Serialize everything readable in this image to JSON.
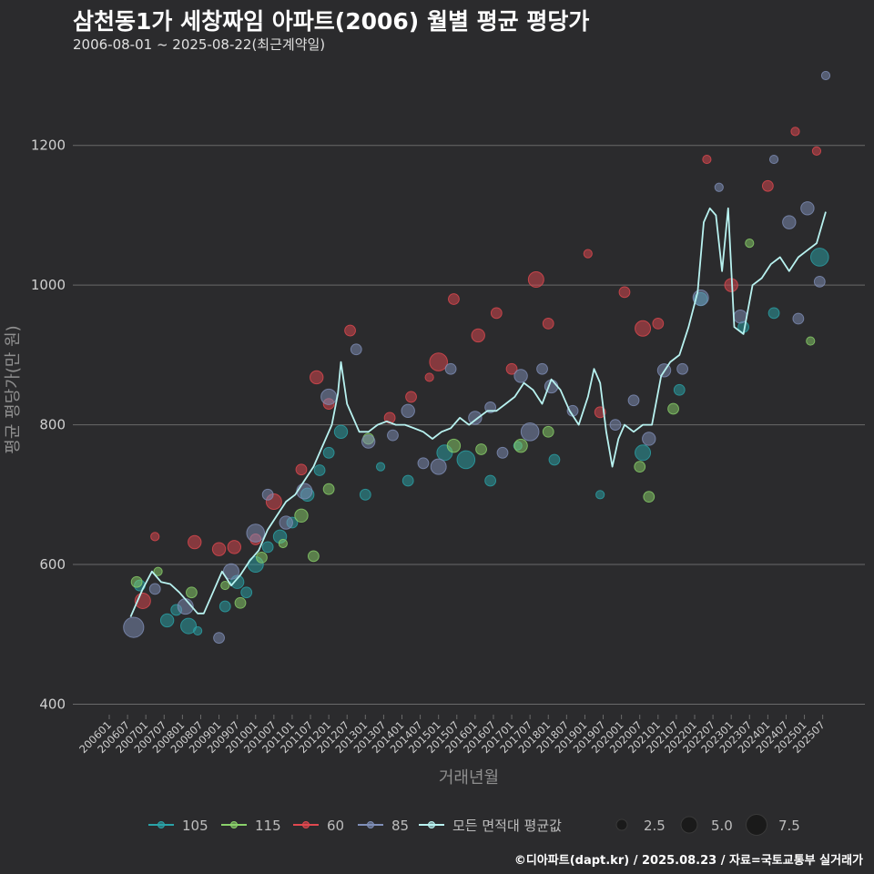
{
  "title": "삼천동1가 세창짜임 아파트(2006) 월별 평균 평당가",
  "subtitle": "2006-08-01 ~ 2025-08-22(최근계약일)",
  "caption": "©디아파트(dapt.kr) / 2025.08.23 / 자료=국토교통부 실거래가",
  "colors": {
    "background": "#2b2b2d",
    "grid": "#6a6a6a",
    "text": "#cfcfcf",
    "series_105": "#2aa3a8",
    "series_115": "#8ad16a",
    "series_60": "#e0484f",
    "series_85": "#7f8fb8",
    "avg_line": "#b8f2f0"
  },
  "chart_data": {
    "type": "line",
    "xlabel": "거래년월",
    "ylabel": "평균 평당가(만 원)",
    "ylim": [
      385,
      1330
    ],
    "yticks": [
      400,
      600,
      800,
      1000,
      1200
    ],
    "xticks": [
      "200601",
      "200607",
      "200701",
      "200707",
      "200801",
      "200807",
      "200901",
      "200907",
      "201001",
      "201007",
      "201101",
      "201107",
      "201201",
      "201207",
      "201301",
      "201307",
      "201401",
      "201407",
      "201501",
      "201507",
      "201601",
      "201607",
      "201701",
      "201707",
      "201801",
      "201807",
      "201901",
      "201907",
      "202001",
      "202007",
      "202101",
      "202107",
      "202201",
      "202207",
      "202301",
      "202307",
      "202401",
      "202407",
      "202501",
      "202507"
    ],
    "grid": true,
    "legend_position": "bottom",
    "legend": {
      "series": [
        "105",
        "115",
        "60",
        "85",
        "모든 면적대 평균값"
      ],
      "sizes": [
        "2.5",
        "5.0",
        "7.5"
      ]
    },
    "average_line": {
      "name": "모든 면적대 평균값",
      "x": [
        "2006-08",
        "2006-12",
        "2007-03",
        "2007-06",
        "2007-09",
        "2007-12",
        "2008-03",
        "2008-06",
        "2008-08",
        "2008-11",
        "2009-02",
        "2009-05",
        "2009-08",
        "2009-11",
        "2010-02",
        "2010-05",
        "2010-08",
        "2010-11",
        "2011-02",
        "2011-05",
        "2011-08",
        "2011-11",
        "2012-02",
        "2012-04",
        "2012-05",
        "2012-07",
        "2012-09",
        "2012-11",
        "2013-02",
        "2013-05",
        "2013-08",
        "2013-11",
        "2014-02",
        "2014-05",
        "2014-08",
        "2014-11",
        "2015-02",
        "2015-05",
        "2015-08",
        "2015-11",
        "2016-02",
        "2016-05",
        "2016-08",
        "2016-11",
        "2017-02",
        "2017-05",
        "2017-08",
        "2017-11",
        "2018-02",
        "2018-05",
        "2018-08",
        "2018-11",
        "2019-02",
        "2019-04",
        "2019-06",
        "2019-08",
        "2019-10",
        "2019-12",
        "2020-02",
        "2020-05",
        "2020-08",
        "2020-11",
        "2021-02",
        "2021-05",
        "2021-08",
        "2021-11",
        "2022-02",
        "2022-04",
        "2022-06",
        "2022-08",
        "2022-10",
        "2022-12",
        "2023-02",
        "2023-05",
        "2023-08",
        "2023-11",
        "2024-02",
        "2024-05",
        "2024-08",
        "2024-11",
        "2025-02",
        "2025-05",
        "2025-08"
      ],
      "y": [
        525,
        565,
        590,
        575,
        572,
        560,
        545,
        530,
        530,
        560,
        590,
        570,
        585,
        605,
        620,
        650,
        670,
        690,
        700,
        720,
        740,
        770,
        800,
        845,
        890,
        830,
        810,
        790,
        790,
        800,
        805,
        800,
        800,
        795,
        790,
        780,
        790,
        795,
        810,
        800,
        810,
        820,
        820,
        830,
        840,
        860,
        850,
        830,
        865,
        850,
        820,
        800,
        840,
        880,
        860,
        790,
        740,
        780,
        800,
        790,
        800,
        800,
        870,
        890,
        900,
        940,
        990,
        1090,
        1110,
        1100,
        1020,
        1110,
        940,
        930,
        1000,
        1010,
        1030,
        1040,
        1020,
        1040,
        1050,
        1060,
        1105
      ]
    },
    "series": [
      {
        "name": "105",
        "points": [
          {
            "x": "2006-11",
            "y": 570,
            "size": 3
          },
          {
            "x": "2007-08",
            "y": 520,
            "size": 4
          },
          {
            "x": "2007-11",
            "y": 535,
            "size": 3
          },
          {
            "x": "2008-03",
            "y": 512,
            "size": 5
          },
          {
            "x": "2008-06",
            "y": 505,
            "size": 2
          },
          {
            "x": "2009-03",
            "y": 540,
            "size": 3
          },
          {
            "x": "2009-07",
            "y": 575,
            "size": 4
          },
          {
            "x": "2009-10",
            "y": 560,
            "size": 3
          },
          {
            "x": "2010-01",
            "y": 600,
            "size": 5
          },
          {
            "x": "2010-05",
            "y": 625,
            "size": 3
          },
          {
            "x": "2010-09",
            "y": 640,
            "size": 4
          },
          {
            "x": "2011-01",
            "y": 660,
            "size": 3
          },
          {
            "x": "2011-06",
            "y": 700,
            "size": 4
          },
          {
            "x": "2011-10",
            "y": 735,
            "size": 3
          },
          {
            "x": "2012-01",
            "y": 760,
            "size": 3
          },
          {
            "x": "2012-05",
            "y": 790,
            "size": 4
          },
          {
            "x": "2013-01",
            "y": 700,
            "size": 3
          },
          {
            "x": "2013-06",
            "y": 740,
            "size": 2
          },
          {
            "x": "2014-03",
            "y": 720,
            "size": 3
          },
          {
            "x": "2015-03",
            "y": 760,
            "size": 5
          },
          {
            "x": "2015-10",
            "y": 750,
            "size": 6
          },
          {
            "x": "2016-06",
            "y": 720,
            "size": 3
          },
          {
            "x": "2017-03",
            "y": 770,
            "size": 2
          },
          {
            "x": "2018-03",
            "y": 750,
            "size": 3
          },
          {
            "x": "2019-06",
            "y": 700,
            "size": 2
          },
          {
            "x": "2020-08",
            "y": 760,
            "size": 5
          },
          {
            "x": "2021-08",
            "y": 850,
            "size": 3
          },
          {
            "x": "2022-03",
            "y": 980,
            "size": 4
          },
          {
            "x": "2023-05",
            "y": 940,
            "size": 3
          },
          {
            "x": "2024-03",
            "y": 960,
            "size": 3
          },
          {
            "x": "2025-06",
            "y": 1040,
            "size": 6
          }
        ]
      },
      {
        "name": "115",
        "points": [
          {
            "x": "2006-10",
            "y": 575,
            "size": 3
          },
          {
            "x": "2007-05",
            "y": 590,
            "size": 2
          },
          {
            "x": "2008-04",
            "y": 560,
            "size": 3
          },
          {
            "x": "2009-03",
            "y": 570,
            "size": 2
          },
          {
            "x": "2009-08",
            "y": 545,
            "size": 3
          },
          {
            "x": "2010-03",
            "y": 610,
            "size": 3
          },
          {
            "x": "2010-10",
            "y": 630,
            "size": 2
          },
          {
            "x": "2011-04",
            "y": 670,
            "size": 4
          },
          {
            "x": "2011-08",
            "y": 612,
            "size": 3
          },
          {
            "x": "2012-01",
            "y": 708,
            "size": 3
          },
          {
            "x": "2013-02",
            "y": 780,
            "size": 3
          },
          {
            "x": "2015-06",
            "y": 770,
            "size": 4
          },
          {
            "x": "2016-03",
            "y": 765,
            "size": 3
          },
          {
            "x": "2017-04",
            "y": 770,
            "size": 4
          },
          {
            "x": "2018-01",
            "y": 790,
            "size": 3
          },
          {
            "x": "2020-07",
            "y": 740,
            "size": 3
          },
          {
            "x": "2020-10",
            "y": 697,
            "size": 3
          },
          {
            "x": "2021-06",
            "y": 823,
            "size": 3
          },
          {
            "x": "2023-07",
            "y": 1060,
            "size": 2
          },
          {
            "x": "2025-03",
            "y": 920,
            "size": 2
          }
        ]
      },
      {
        "name": "60",
        "points": [
          {
            "x": "2006-12",
            "y": 548,
            "size": 5
          },
          {
            "x": "2007-04",
            "y": 640,
            "size": 2
          },
          {
            "x": "2008-05",
            "y": 632,
            "size": 4
          },
          {
            "x": "2009-01",
            "y": 622,
            "size": 4
          },
          {
            "x": "2009-06",
            "y": 625,
            "size": 4
          },
          {
            "x": "2010-01",
            "y": 636,
            "size": 3
          },
          {
            "x": "2010-07",
            "y": 690,
            "size": 5
          },
          {
            "x": "2011-04",
            "y": 736,
            "size": 3
          },
          {
            "x": "2011-09",
            "y": 868,
            "size": 4
          },
          {
            "x": "2012-01",
            "y": 830,
            "size": 3
          },
          {
            "x": "2012-08",
            "y": 935,
            "size": 3
          },
          {
            "x": "2013-09",
            "y": 810,
            "size": 3
          },
          {
            "x": "2014-04",
            "y": 840,
            "size": 3
          },
          {
            "x": "2014-10",
            "y": 868,
            "size": 2
          },
          {
            "x": "2015-01",
            "y": 890,
            "size": 6
          },
          {
            "x": "2015-06",
            "y": 980,
            "size": 3
          },
          {
            "x": "2016-02",
            "y": 928,
            "size": 4
          },
          {
            "x": "2016-08",
            "y": 960,
            "size": 3
          },
          {
            "x": "2017-01",
            "y": 880,
            "size": 3
          },
          {
            "x": "2017-09",
            "y": 1008,
            "size": 5
          },
          {
            "x": "2018-01",
            "y": 945,
            "size": 3
          },
          {
            "x": "2019-02",
            "y": 1045,
            "size": 2
          },
          {
            "x": "2019-06",
            "y": 818,
            "size": 3
          },
          {
            "x": "2020-02",
            "y": 990,
            "size": 3
          },
          {
            "x": "2020-08",
            "y": 938,
            "size": 5
          },
          {
            "x": "2021-01",
            "y": 945,
            "size": 3
          },
          {
            "x": "2022-05",
            "y": 1180,
            "size": 2
          },
          {
            "x": "2023-01",
            "y": 1000,
            "size": 4
          },
          {
            "x": "2024-01",
            "y": 1142,
            "size": 3
          },
          {
            "x": "2024-10",
            "y": 1220,
            "size": 2
          },
          {
            "x": "2025-05",
            "y": 1192,
            "size": 2
          }
        ]
      },
      {
        "name": "85",
        "points": [
          {
            "x": "2006-09",
            "y": 510,
            "size": 7
          },
          {
            "x": "2007-04",
            "y": 565,
            "size": 3
          },
          {
            "x": "2008-02",
            "y": 540,
            "size": 5
          },
          {
            "x": "2009-01",
            "y": 495,
            "size": 3
          },
          {
            "x": "2009-05",
            "y": 590,
            "size": 5
          },
          {
            "x": "2010-01",
            "y": 645,
            "size": 6
          },
          {
            "x": "2010-05",
            "y": 700,
            "size": 3
          },
          {
            "x": "2010-11",
            "y": 660,
            "size": 4
          },
          {
            "x": "2011-05",
            "y": 705,
            "size": 5
          },
          {
            "x": "2012-01",
            "y": 840,
            "size": 5
          },
          {
            "x": "2012-10",
            "y": 908,
            "size": 3
          },
          {
            "x": "2013-02",
            "y": 776,
            "size": 4
          },
          {
            "x": "2013-10",
            "y": 785,
            "size": 3
          },
          {
            "x": "2014-03",
            "y": 820,
            "size": 4
          },
          {
            "x": "2014-08",
            "y": 745,
            "size": 3
          },
          {
            "x": "2015-01",
            "y": 740,
            "size": 5
          },
          {
            "x": "2015-05",
            "y": 880,
            "size": 3
          },
          {
            "x": "2016-01",
            "y": 810,
            "size": 4
          },
          {
            "x": "2016-06",
            "y": 825,
            "size": 3
          },
          {
            "x": "2016-10",
            "y": 760,
            "size": 3
          },
          {
            "x": "2017-04",
            "y": 870,
            "size": 4
          },
          {
            "x": "2017-07",
            "y": 790,
            "size": 6
          },
          {
            "x": "2017-11",
            "y": 880,
            "size": 3
          },
          {
            "x": "2018-02",
            "y": 855,
            "size": 4
          },
          {
            "x": "2018-09",
            "y": 820,
            "size": 3
          },
          {
            "x": "2019-11",
            "y": 800,
            "size": 3
          },
          {
            "x": "2020-05",
            "y": 835,
            "size": 3
          },
          {
            "x": "2020-10",
            "y": 780,
            "size": 4
          },
          {
            "x": "2021-03",
            "y": 878,
            "size": 4
          },
          {
            "x": "2021-09",
            "y": 880,
            "size": 3
          },
          {
            "x": "2022-03",
            "y": 982,
            "size": 5
          },
          {
            "x": "2022-09",
            "y": 1140,
            "size": 2
          },
          {
            "x": "2023-04",
            "y": 955,
            "size": 4
          },
          {
            "x": "2024-03",
            "y": 1180,
            "size": 2
          },
          {
            "x": "2024-08",
            "y": 1090,
            "size": 4
          },
          {
            "x": "2024-11",
            "y": 952,
            "size": 3
          },
          {
            "x": "2025-02",
            "y": 1110,
            "size": 4
          },
          {
            "x": "2025-06",
            "y": 1005,
            "size": 3
          },
          {
            "x": "2025-08",
            "y": 1300,
            "size": 2
          }
        ]
      }
    ]
  }
}
